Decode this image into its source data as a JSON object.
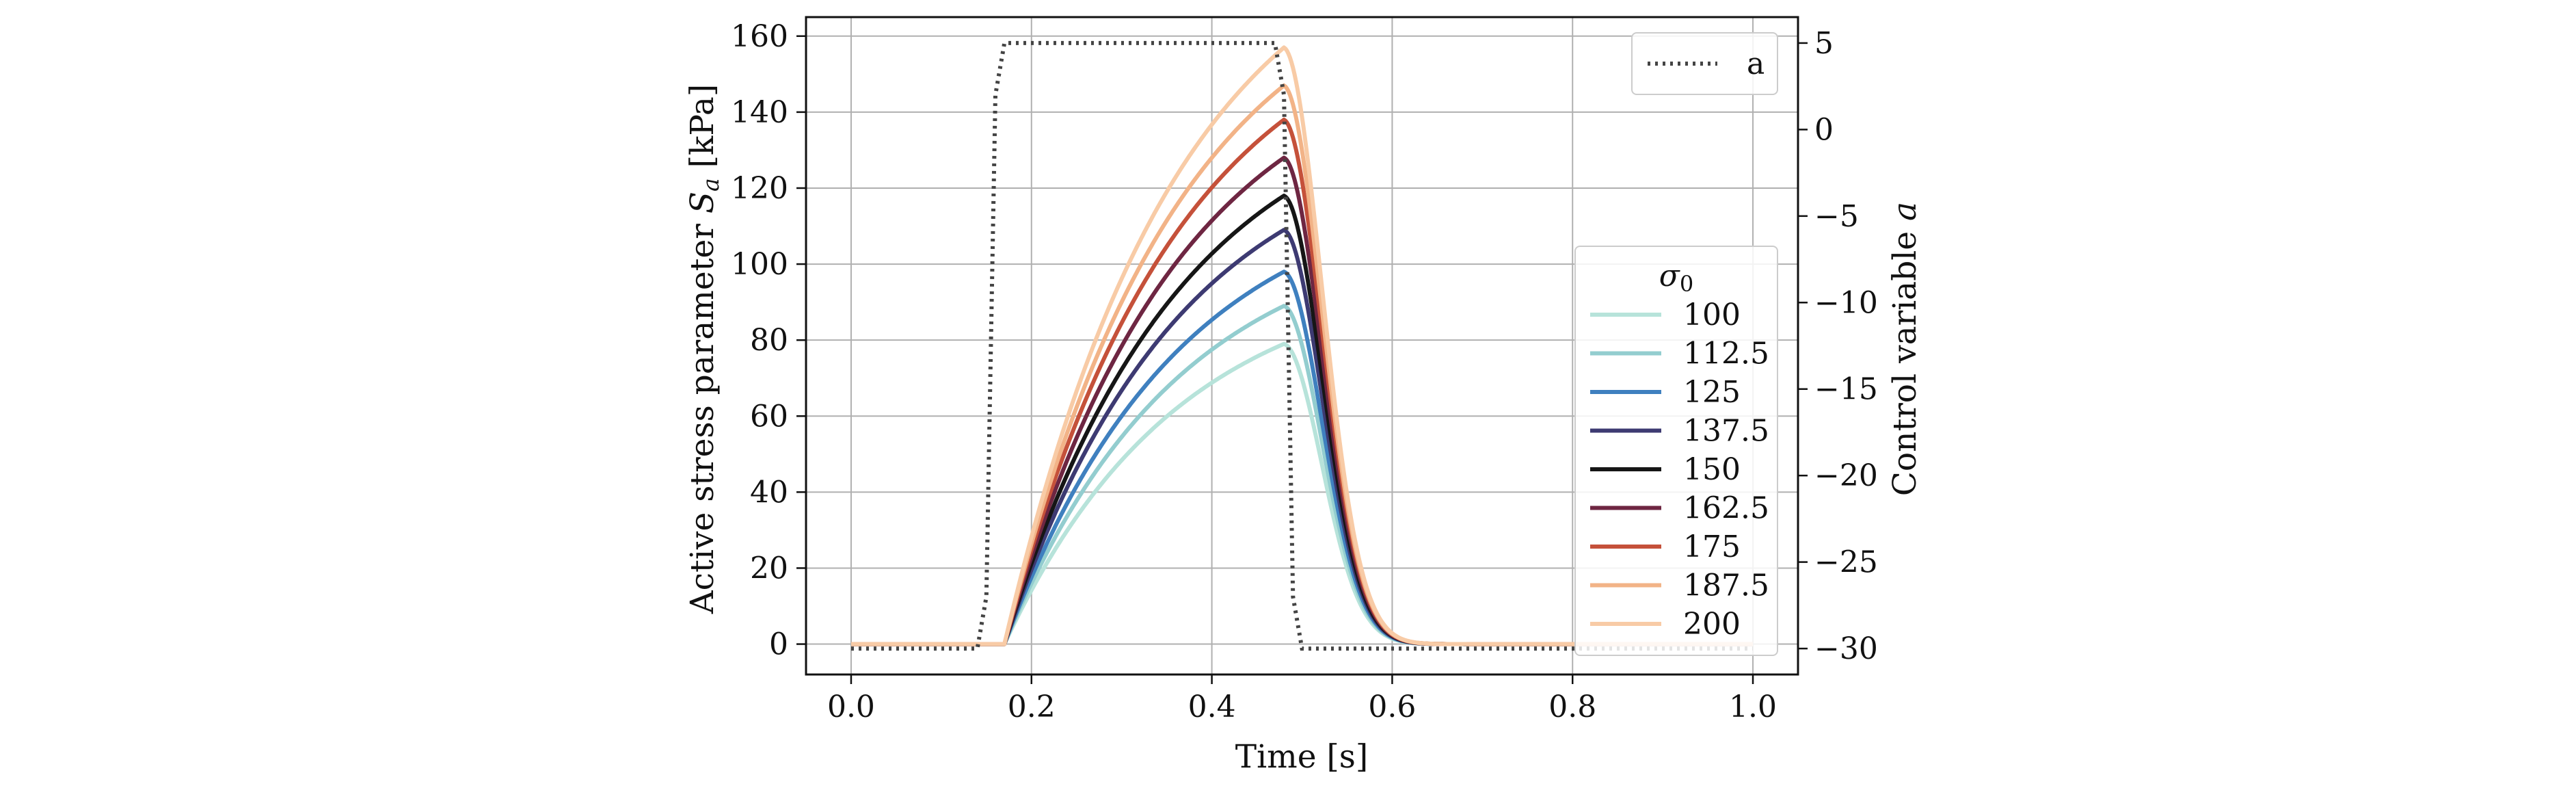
{
  "chart_data": {
    "type": "line",
    "xlabel": "Time [s]",
    "ylabel_left": "Active stress parameter S_a [kPa]",
    "ylabel_left_prefix": "Active stress parameter ",
    "ylabel_left_symbol": "S",
    "ylabel_left_subscript": "a",
    "ylabel_left_unit": " [kPa]",
    "ylabel_right": "Control variable a",
    "ylabel_right_prefix": "Control variable ",
    "ylabel_right_symbol": "a",
    "xlim": [
      -0.05,
      1.05
    ],
    "ylim_left": [
      -8,
      165
    ],
    "ylim_right": [
      -31.5,
      6.5
    ],
    "xticks": [
      "0.0",
      "0.2",
      "0.4",
      "0.6",
      "0.8",
      "1.0"
    ],
    "xtick_values": [
      0.0,
      0.2,
      0.4,
      0.6,
      0.8,
      1.0
    ],
    "yticks_left": [
      "0",
      "20",
      "40",
      "60",
      "80",
      "100",
      "120",
      "140",
      "160"
    ],
    "ytick_values_left": [
      0,
      20,
      40,
      60,
      80,
      100,
      120,
      140,
      160
    ],
    "yticks_right": [
      "5",
      "0",
      "−5",
      "−10",
      "−15",
      "−20",
      "−25",
      "−30"
    ],
    "ytick_values_right": [
      5,
      0,
      -5,
      -10,
      -15,
      -20,
      -25,
      -30
    ],
    "grid": true,
    "control_series": {
      "name": "a",
      "axis": "right",
      "color": "#444444",
      "style": "dotted",
      "low": -30,
      "high": 5,
      "rise_time": 0.155,
      "fall_time": 0.485,
      "x": [
        0.0,
        0.14,
        0.15,
        0.155,
        0.16,
        0.17,
        0.47,
        0.48,
        0.485,
        0.49,
        0.5,
        1.0
      ],
      "y": [
        -30,
        -30,
        -27,
        -12.5,
        2,
        5,
        5,
        2,
        -12.5,
        -27,
        -30,
        -30
      ]
    },
    "legend_left_title": "σ0",
    "legend_left_title_symbol": "σ",
    "legend_left_title_subscript": "0",
    "legend_placement": "lower-right",
    "legend_control_placement": "top-right",
    "stress_curve": {
      "onset": 0.17,
      "peak_time": 0.48,
      "decay_end": 0.68
    },
    "series": [
      {
        "name": "100",
        "color": "#b7e3da",
        "peak": 79
      },
      {
        "name": "112.5",
        "color": "#93cdcf",
        "peak": 89
      },
      {
        "name": "125",
        "color": "#3f80bf",
        "peak": 98
      },
      {
        "name": "137.5",
        "color": "#3d3a72",
        "peak": 109
      },
      {
        "name": "150",
        "color": "#161616",
        "peak": 118
      },
      {
        "name": "162.5",
        "color": "#6e2642",
        "peak": 128
      },
      {
        "name": "175",
        "color": "#c5513a",
        "peak": 138
      },
      {
        "name": "187.5",
        "color": "#f2b387",
        "peak": 147
      },
      {
        "name": "200",
        "color": "#f8cba6",
        "peak": 157
      }
    ]
  }
}
